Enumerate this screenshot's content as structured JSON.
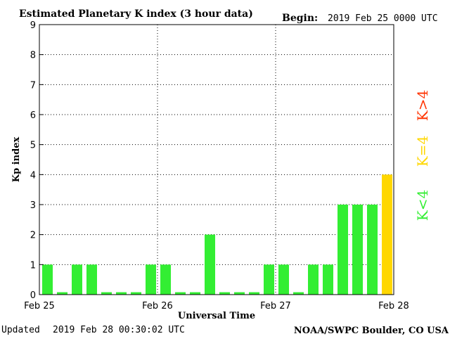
{
  "header": {
    "title": "Estimated Planetary K index (3 hour data)",
    "begin_label": "Begin:",
    "begin_value": "2019 Feb 25 0000 UTC"
  },
  "footer": {
    "updated_label": "Updated",
    "updated_value": "2019 Feb 28 00:30:02 UTC",
    "credit": "NOAA/SWPC Boulder, CO USA"
  },
  "legend": {
    "high": "K>4",
    "equal": "K=4",
    "low": "K<4"
  },
  "colors": {
    "low": "#33ee33",
    "equal": "#ffd700",
    "high": "#ff3300",
    "axis": "#000000",
    "grid": "#000000"
  },
  "chart_data": {
    "type": "bar",
    "title": "Estimated Planetary K index (3 hour data)",
    "xlabel": "Universal Time",
    "ylabel": "Kp index",
    "ylim": [
      0,
      9
    ],
    "yticks": [
      "0",
      "1",
      "2",
      "3",
      "4",
      "5",
      "6",
      "7",
      "8",
      "9"
    ],
    "x_ticks": [
      "Feb 25",
      "Feb 26",
      "Feb 27",
      "Feb 28"
    ],
    "grid": true,
    "bars_per_day": 8,
    "values": [
      1,
      0,
      1,
      1,
      0,
      0,
      0,
      1,
      1,
      0,
      0,
      2,
      0,
      0,
      0,
      1,
      1,
      0,
      1,
      1,
      3,
      3,
      3,
      4
    ]
  }
}
